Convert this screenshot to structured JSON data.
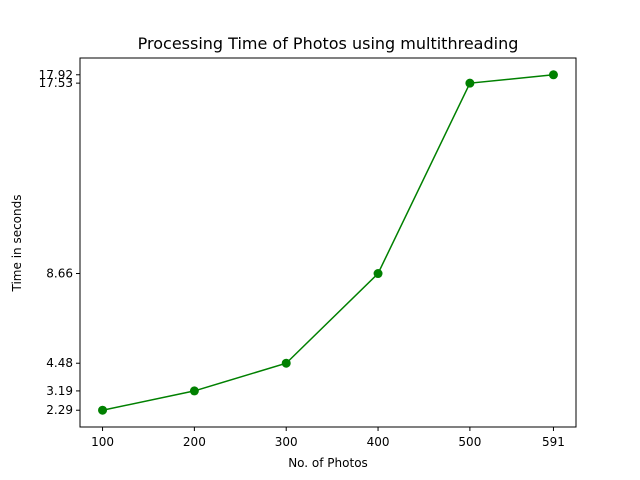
{
  "chart_data": {
    "type": "line",
    "title": "Processing Time of Photos using multithreading",
    "xlabel": "No. of Photos",
    "ylabel": "Time in seconds",
    "x": [
      100,
      200,
      300,
      400,
      500,
      591
    ],
    "x_tick_labels": [
      "100",
      "200",
      "300",
      "400",
      "500",
      "591"
    ],
    "series": [
      {
        "values": [
          2.29,
          3.19,
          4.48,
          8.66,
          17.53,
          17.92
        ],
        "color": "#008000",
        "marker": "circle"
      }
    ],
    "y_ticks": [
      2.29,
      3.19,
      4.48,
      8.66,
      17.53,
      17.92
    ],
    "y_tick_labels": [
      "2.29",
      "3.19",
      "4.48",
      "8.66",
      "17.53",
      "17.92"
    ],
    "grid": false,
    "legend": "none"
  }
}
